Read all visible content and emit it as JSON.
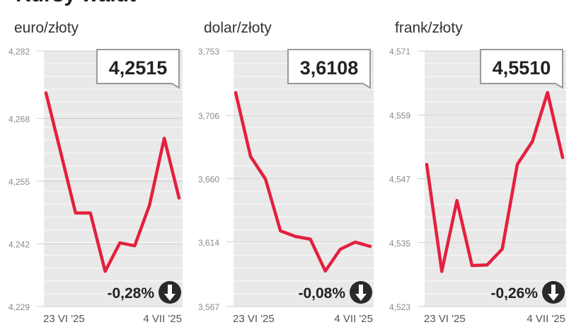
{
  "title": "Kursy walut",
  "chart_data": [
    {
      "type": "line",
      "title": "euro/złoty",
      "color": "#e4203f",
      "categories": [
        "23 VI '25",
        null,
        null,
        null,
        null,
        null,
        null,
        null,
        null,
        "4 VII '25"
      ],
      "values": [
        4.2733,
        4.2609,
        4.2484,
        4.2484,
        4.2363,
        4.2422,
        4.2416,
        4.25,
        4.2639,
        4.2515
      ],
      "ylim": [
        4.229,
        4.282
      ],
      "yticks": [
        {
          "value": 4.229,
          "label": "4,229"
        },
        {
          "value": 4.242,
          "label": "4,242"
        },
        {
          "value": 4.255,
          "label": "4,255"
        },
        {
          "value": 4.268,
          "label": "4,268"
        },
        {
          "value": 4.282,
          "label": "4,282"
        }
      ],
      "current": {
        "value": 4.2515,
        "label": "4,2515"
      },
      "change": {
        "value": -0.28,
        "label": "-0,28%"
      }
    },
    {
      "type": "line",
      "title": "dolar/złoty",
      "color": "#e4203f",
      "categories": [
        "23 VI '25",
        null,
        null,
        null,
        null,
        null,
        null,
        null,
        null,
        "4 VII '25"
      ],
      "values": [
        3.7226,
        3.6762,
        3.6597,
        3.6221,
        3.618,
        3.616,
        3.5928,
        3.6087,
        3.6139,
        3.6108
      ],
      "ylim": [
        3.567,
        3.753
      ],
      "yticks": [
        {
          "value": 3.567,
          "label": "3,567"
        },
        {
          "value": 3.614,
          "label": "3,614"
        },
        {
          "value": 3.66,
          "label": "3,660"
        },
        {
          "value": 3.706,
          "label": "3,706"
        },
        {
          "value": 3.753,
          "label": "3,753"
        }
      ],
      "current": {
        "value": 3.6108,
        "label": "3,6108"
      },
      "change": {
        "value": -0.08,
        "label": "-0,08%"
      }
    },
    {
      "type": "line",
      "title": "frank/złoty",
      "color": "#e4203f",
      "categories": [
        "23 VI '25",
        null,
        null,
        null,
        null,
        null,
        null,
        null,
        null,
        "4 VII '25"
      ],
      "values": [
        4.5497,
        4.5296,
        4.5429,
        4.5307,
        4.5308,
        4.5338,
        4.5497,
        4.554,
        4.5632,
        4.551
      ],
      "ylim": [
        4.523,
        4.571
      ],
      "yticks": [
        {
          "value": 4.523,
          "label": "4,523"
        },
        {
          "value": 4.535,
          "label": "4,535"
        },
        {
          "value": 4.547,
          "label": "4,547"
        },
        {
          "value": 4.559,
          "label": "4,559"
        },
        {
          "value": 4.571,
          "label": "4,571"
        }
      ],
      "current": {
        "value": 4.551,
        "label": "4,5510"
      },
      "change": {
        "value": -0.26,
        "label": "-0,26%"
      }
    }
  ]
}
